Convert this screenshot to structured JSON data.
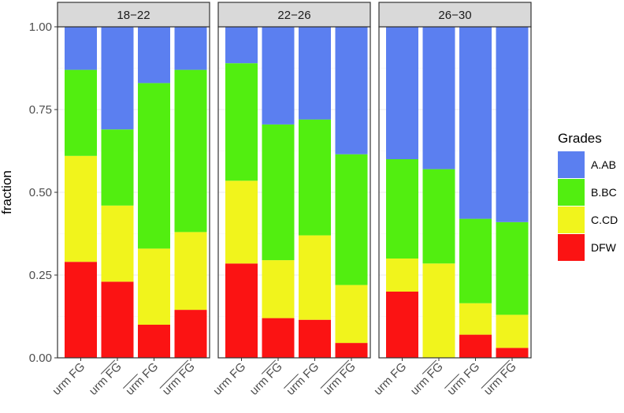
{
  "chart_data": {
    "type": "bar",
    "stacked": true,
    "ylabel": "fraction",
    "ylim": [
      0,
      1
    ],
    "yticks": [
      "0.00",
      "0.25",
      "0.50",
      "0.75",
      "1.00"
    ],
    "legend": {
      "title": "Grades",
      "position": "right"
    },
    "categories": [
      {
        "text": "urm FG",
        "overline_urm": false,
        "overline_fg": false
      },
      {
        "text": "urm FG",
        "overline_urm": false,
        "overline_fg": true
      },
      {
        "text": "urm FG",
        "overline_urm": true,
        "overline_fg": false
      },
      {
        "text": "urm FG",
        "overline_urm": true,
        "overline_fg": true
      }
    ],
    "series": [
      {
        "name": "A.AB",
        "color": "#5b7ff0"
      },
      {
        "name": "B.BC",
        "color": "#52ee10"
      },
      {
        "name": "C.CD",
        "color": "#f1f41c"
      },
      {
        "name": "DFW",
        "color": "#fb1313"
      }
    ],
    "panels": [
      {
        "label": "18−22",
        "bars": [
          {
            "DFW": 0.29,
            "C.CD": 0.32,
            "B.BC": 0.26,
            "A.AB": 0.13
          },
          {
            "DFW": 0.23,
            "C.CD": 0.23,
            "B.BC": 0.23,
            "A.AB": 0.31
          },
          {
            "DFW": 0.1,
            "C.CD": 0.23,
            "B.BC": 0.5,
            "A.AB": 0.17
          },
          {
            "DFW": 0.145,
            "C.CD": 0.235,
            "B.BC": 0.49,
            "A.AB": 0.13
          }
        ]
      },
      {
        "label": "22−26",
        "bars": [
          {
            "DFW": 0.285,
            "C.CD": 0.25,
            "B.BC": 0.355,
            "A.AB": 0.11
          },
          {
            "DFW": 0.12,
            "C.CD": 0.175,
            "B.BC": 0.41,
            "A.AB": 0.295
          },
          {
            "DFW": 0.115,
            "C.CD": 0.255,
            "B.BC": 0.35,
            "A.AB": 0.28
          },
          {
            "DFW": 0.045,
            "C.CD": 0.175,
            "B.BC": 0.395,
            "A.AB": 0.385
          }
        ]
      },
      {
        "label": "26−30",
        "bars": [
          {
            "DFW": 0.2,
            "C.CD": 0.1,
            "B.BC": 0.3,
            "A.AB": 0.4
          },
          {
            "DFW": 0.0,
            "C.CD": 0.285,
            "B.BC": 0.285,
            "A.AB": 0.43
          },
          {
            "DFW": 0.07,
            "C.CD": 0.095,
            "B.BC": 0.255,
            "A.AB": 0.58
          },
          {
            "DFW": 0.03,
            "C.CD": 0.1,
            "B.BC": 0.28,
            "A.AB": 0.59
          }
        ]
      }
    ]
  }
}
